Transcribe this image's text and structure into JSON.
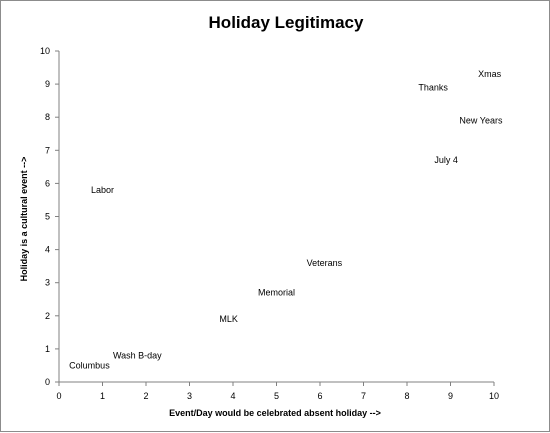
{
  "chart_data": {
    "type": "scatter",
    "title": "Holiday Legitimacy",
    "xlabel": "Event/Day would be celebrated absent holiday -->",
    "ylabel": "Holiday is a cultural event -->",
    "xlim": [
      0,
      10
    ],
    "ylim": [
      0,
      10
    ],
    "xticks": [
      "0",
      "1",
      "2",
      "3",
      "4",
      "5",
      "6",
      "7",
      "8",
      "9",
      "10"
    ],
    "yticks": [
      "0",
      "1",
      "2",
      "3",
      "4",
      "5",
      "6",
      "7",
      "8",
      "9",
      "10"
    ],
    "grid": false,
    "legend": "none",
    "points": [
      {
        "label": "Xmas",
        "x": 9.9,
        "y": 9.3
      },
      {
        "label": "Thanks",
        "x": 8.6,
        "y": 8.9
      },
      {
        "label": "New Years",
        "x": 9.7,
        "y": 7.9
      },
      {
        "label": "July 4",
        "x": 8.9,
        "y": 6.7
      },
      {
        "label": "Labor",
        "x": 1.0,
        "y": 5.8
      },
      {
        "label": "Veterans",
        "x": 6.1,
        "y": 3.6
      },
      {
        "label": "Memorial",
        "x": 5.0,
        "y": 2.7
      },
      {
        "label": "MLK",
        "x": 3.9,
        "y": 1.9
      },
      {
        "label": "Wash B-day",
        "x": 1.8,
        "y": 0.8
      },
      {
        "label": "Columbus",
        "x": 0.7,
        "y": 0.5
      }
    ]
  }
}
